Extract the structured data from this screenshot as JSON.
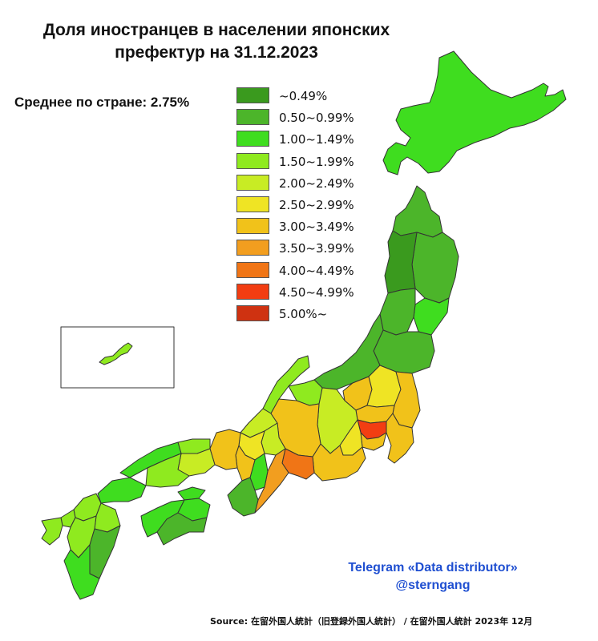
{
  "title": {
    "line1": "Доля иностранцев в населении японских",
    "line2": "префектур на 31.12.2023"
  },
  "average_label": "Среднее по стране: 2.75%",
  "legend": [
    {
      "label": "~0.49%",
      "color": "#3a9a1e"
    },
    {
      "label": "0.50~0.99%",
      "color": "#4cb52a"
    },
    {
      "label": "1.00~1.49%",
      "color": "#3fdd1f"
    },
    {
      "label": "1.50~1.99%",
      "color": "#8fea1f"
    },
    {
      "label": "2.00~2.49%",
      "color": "#c8ec24"
    },
    {
      "label": "2.50~2.99%",
      "color": "#efe424"
    },
    {
      "label": "3.00~3.49%",
      "color": "#f1c21a"
    },
    {
      "label": "3.50~3.99%",
      "color": "#f29e1f"
    },
    {
      "label": "4.00~4.49%",
      "color": "#f07516"
    },
    {
      "label": "4.50~4.99%",
      "color": "#f23d12"
    },
    {
      "label": "5.00%~",
      "color": "#cf3211"
    }
  ],
  "credit": {
    "line1": "Telegram «Data distributor»",
    "line2": "@sterngang"
  },
  "source": "Source: 在留外国人統計（旧登録外国人統計） / 在留外国人統計 2023年 12月"
}
